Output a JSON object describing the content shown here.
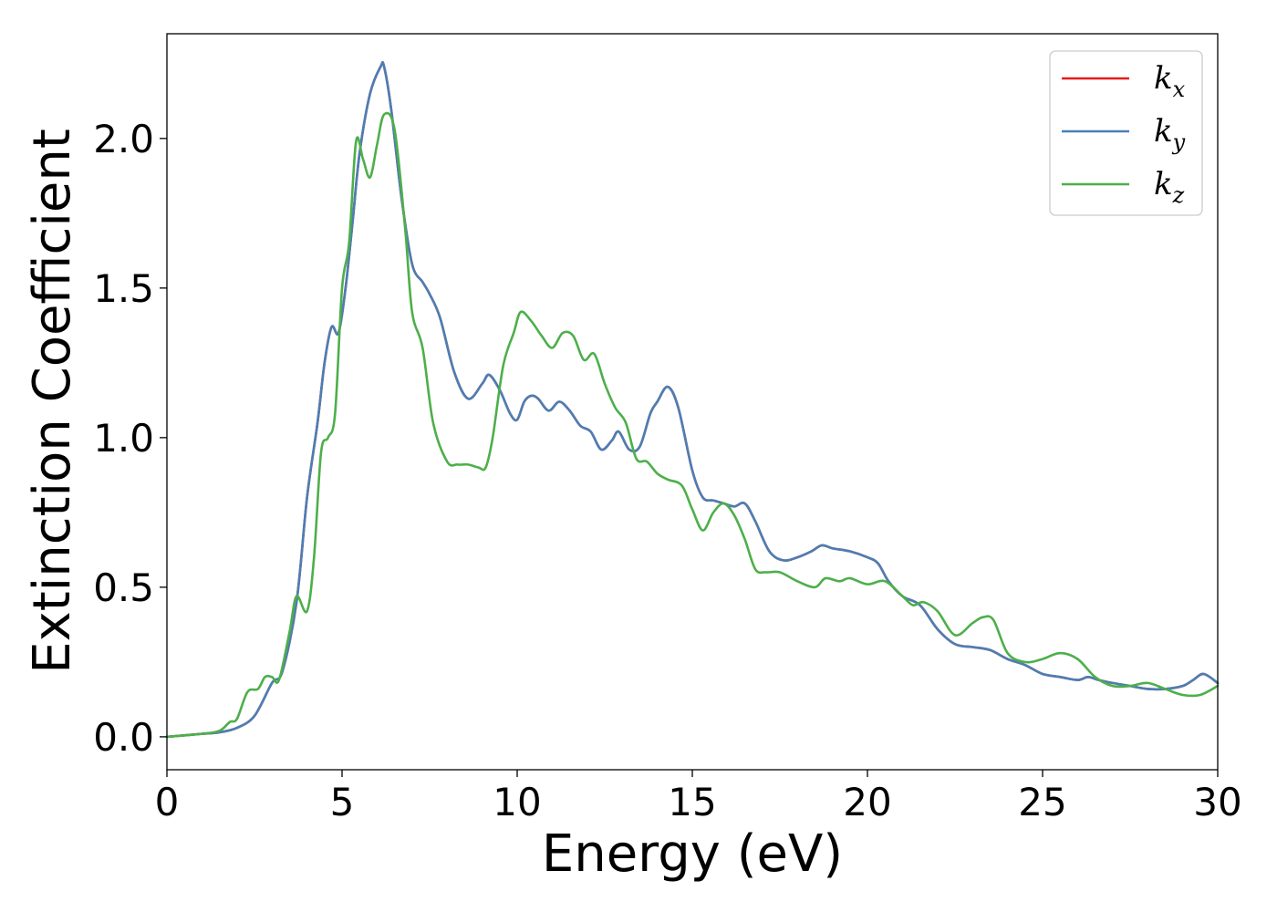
{
  "chart_data": {
    "type": "line",
    "title": "",
    "xlabel": "Energy (eV)",
    "ylabel": "Extinction Coefficient",
    "xlim": [
      0,
      30
    ],
    "ylim": [
      -0.11,
      2.35
    ],
    "xticks": [
      "0",
      "5",
      "10",
      "15",
      "20",
      "25",
      "30"
    ],
    "yticks": [
      "0.0",
      "0.5",
      "1.0",
      "1.5",
      "2.0"
    ],
    "grid": false,
    "legend_position": "top-right",
    "series": [
      {
        "name": "k_x",
        "legend_base": "k",
        "legend_sub": "x",
        "color": "#e41a1c",
        "x": [
          0,
          1,
          1.5,
          2,
          2.5,
          3,
          3.3,
          3.7,
          4,
          4.3,
          4.5,
          4.7,
          4.9,
          5.1,
          5.3,
          5.5,
          5.8,
          6.1,
          6.2,
          6.4,
          6.7,
          7,
          7.3,
          7.5,
          7.8,
          8.2,
          8.6,
          9,
          9.2,
          9.5,
          9.8,
          10,
          10.2,
          10.4,
          10.6,
          10.9,
          11.2,
          11.5,
          11.8,
          12.1,
          12.4,
          12.7,
          12.9,
          13.2,
          13.5,
          13.8,
          14,
          14.3,
          14.6,
          15,
          15.3,
          15.6,
          15.9,
          16.2,
          16.5,
          16.8,
          17.2,
          17.6,
          18,
          18.4,
          18.7,
          19,
          19.5,
          20,
          20.3,
          20.6,
          21,
          21.5,
          22,
          22.5,
          23,
          23.5,
          24,
          24.5,
          25,
          25.5,
          26,
          26.3,
          26.6,
          27,
          27.5,
          28,
          28.5,
          29,
          29.3,
          29.6,
          30
        ],
        "y": [
          0,
          0.01,
          0.015,
          0.03,
          0.07,
          0.18,
          0.22,
          0.45,
          0.8,
          1.05,
          1.25,
          1.37,
          1.35,
          1.5,
          1.72,
          1.95,
          2.15,
          2.24,
          2.24,
          2.1,
          1.8,
          1.58,
          1.52,
          1.48,
          1.4,
          1.22,
          1.13,
          1.18,
          1.21,
          1.16,
          1.08,
          1.06,
          1.12,
          1.14,
          1.13,
          1.09,
          1.12,
          1.09,
          1.04,
          1.02,
          0.96,
          0.99,
          1.02,
          0.96,
          0.97,
          1.08,
          1.12,
          1.17,
          1.1,
          0.89,
          0.8,
          0.79,
          0.78,
          0.77,
          0.78,
          0.72,
          0.62,
          0.59,
          0.6,
          0.62,
          0.64,
          0.63,
          0.62,
          0.6,
          0.58,
          0.52,
          0.47,
          0.44,
          0.36,
          0.31,
          0.3,
          0.29,
          0.26,
          0.24,
          0.21,
          0.2,
          0.19,
          0.2,
          0.19,
          0.18,
          0.17,
          0.16,
          0.16,
          0.17,
          0.19,
          0.21,
          0.18
        ]
      },
      {
        "name": "k_y",
        "legend_base": "k",
        "legend_sub": "y",
        "color": "#4a7fb5",
        "x": [
          0,
          1,
          1.5,
          2,
          2.5,
          3,
          3.3,
          3.7,
          4,
          4.3,
          4.5,
          4.7,
          4.9,
          5.1,
          5.3,
          5.5,
          5.8,
          6.1,
          6.2,
          6.4,
          6.7,
          7,
          7.3,
          7.5,
          7.8,
          8.2,
          8.6,
          9,
          9.2,
          9.5,
          9.8,
          10,
          10.2,
          10.4,
          10.6,
          10.9,
          11.2,
          11.5,
          11.8,
          12.1,
          12.4,
          12.7,
          12.9,
          13.2,
          13.5,
          13.8,
          14,
          14.3,
          14.6,
          15,
          15.3,
          15.6,
          15.9,
          16.2,
          16.5,
          16.8,
          17.2,
          17.6,
          18,
          18.4,
          18.7,
          19,
          19.5,
          20,
          20.3,
          20.6,
          21,
          21.5,
          22,
          22.5,
          23,
          23.5,
          24,
          24.5,
          25,
          25.5,
          26,
          26.3,
          26.6,
          27,
          27.5,
          28,
          28.5,
          29,
          29.3,
          29.6,
          30
        ],
        "y": [
          0,
          0.01,
          0.015,
          0.03,
          0.07,
          0.18,
          0.22,
          0.45,
          0.8,
          1.05,
          1.25,
          1.37,
          1.35,
          1.5,
          1.72,
          1.95,
          2.15,
          2.24,
          2.24,
          2.1,
          1.8,
          1.58,
          1.52,
          1.48,
          1.4,
          1.22,
          1.13,
          1.18,
          1.21,
          1.16,
          1.08,
          1.06,
          1.12,
          1.14,
          1.13,
          1.09,
          1.12,
          1.09,
          1.04,
          1.02,
          0.96,
          0.99,
          1.02,
          0.96,
          0.97,
          1.08,
          1.12,
          1.17,
          1.1,
          0.89,
          0.8,
          0.79,
          0.78,
          0.77,
          0.78,
          0.72,
          0.62,
          0.59,
          0.6,
          0.62,
          0.64,
          0.63,
          0.62,
          0.6,
          0.58,
          0.52,
          0.47,
          0.44,
          0.36,
          0.31,
          0.3,
          0.29,
          0.26,
          0.24,
          0.21,
          0.2,
          0.19,
          0.2,
          0.19,
          0.18,
          0.17,
          0.16,
          0.16,
          0.17,
          0.19,
          0.21,
          0.18
        ]
      },
      {
        "name": "k_z",
        "legend_base": "k",
        "legend_sub": "z",
        "color": "#4daf4a",
        "x": [
          0,
          1,
          1.5,
          1.8,
          2,
          2.3,
          2.6,
          2.8,
          3,
          3.2,
          3.5,
          3.7,
          4,
          4.2,
          4.4,
          4.6,
          4.8,
          5,
          5.2,
          5.4,
          5.6,
          5.8,
          6,
          6.2,
          6.5,
          6.8,
          7,
          7.3,
          7.6,
          8,
          8.3,
          8.6,
          8.9,
          9.1,
          9.3,
          9.6,
          9.9,
          10.1,
          10.4,
          10.7,
          11,
          11.3,
          11.6,
          11.9,
          12.2,
          12.5,
          12.8,
          13.1,
          13.4,
          13.7,
          14,
          14.3,
          14.7,
          15,
          15.3,
          15.6,
          15.9,
          16.2,
          16.5,
          16.8,
          17.1,
          17.5,
          18,
          18.5,
          18.8,
          19.2,
          19.5,
          20,
          20.5,
          21,
          21.3,
          21.6,
          22,
          22.5,
          23,
          23.3,
          23.6,
          24,
          24.5,
          25,
          25.5,
          26,
          26.5,
          27,
          27.5,
          28,
          28.5,
          29,
          29.5,
          30
        ],
        "y": [
          0,
          0.01,
          0.02,
          0.05,
          0.06,
          0.15,
          0.16,
          0.2,
          0.2,
          0.19,
          0.35,
          0.47,
          0.42,
          0.6,
          0.95,
          1.0,
          1.08,
          1.5,
          1.65,
          1.99,
          1.93,
          1.87,
          1.98,
          2.08,
          2.03,
          1.7,
          1.42,
          1.3,
          1.05,
          0.92,
          0.91,
          0.91,
          0.9,
          0.9,
          1.0,
          1.24,
          1.35,
          1.42,
          1.39,
          1.34,
          1.3,
          1.35,
          1.34,
          1.26,
          1.28,
          1.18,
          1.1,
          1.05,
          0.93,
          0.92,
          0.88,
          0.86,
          0.84,
          0.76,
          0.69,
          0.75,
          0.78,
          0.74,
          0.66,
          0.56,
          0.55,
          0.55,
          0.52,
          0.5,
          0.53,
          0.52,
          0.53,
          0.51,
          0.52,
          0.47,
          0.44,
          0.45,
          0.42,
          0.34,
          0.38,
          0.4,
          0.39,
          0.28,
          0.25,
          0.26,
          0.28,
          0.26,
          0.2,
          0.17,
          0.17,
          0.18,
          0.16,
          0.14,
          0.14,
          0.17
        ]
      }
    ]
  }
}
